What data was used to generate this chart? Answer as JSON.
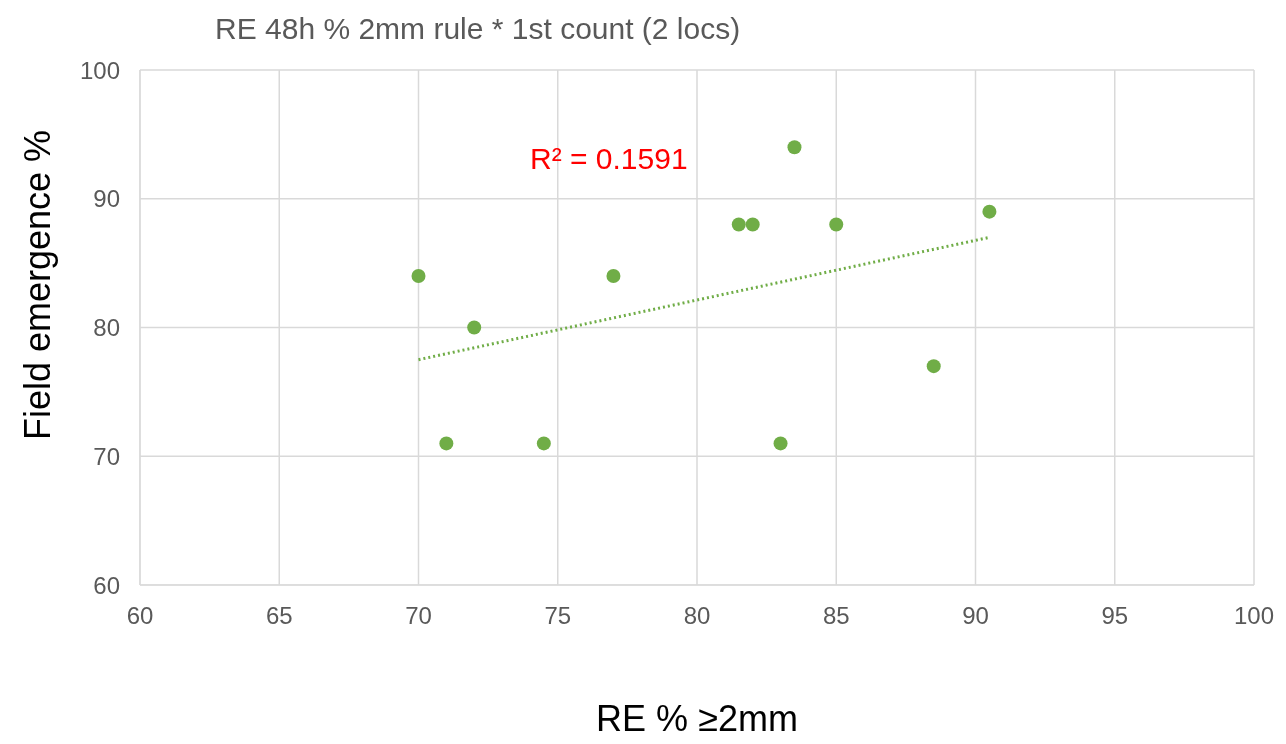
{
  "chart_data": {
    "type": "scatter",
    "title": "RE 48h % 2mm rule * 1st count (2 locs)",
    "xlabel": "RE % ≥2mm",
    "ylabel": "Field emergence %",
    "series": [
      {
        "color": "#70ad47",
        "marker": "circle",
        "x": [
          70,
          71,
          72,
          74.5,
          77,
          81.5,
          82,
          83,
          83.5,
          85,
          88.5,
          90.5
        ],
        "values": [
          84,
          71,
          80,
          71,
          84,
          88,
          88,
          71,
          94,
          88,
          77,
          89
        ]
      },
      {
        "type": "line",
        "color": "#70ad47",
        "line_style": "dotted",
        "x": [
          70,
          90.5
        ],
        "values": [
          77.5,
          87
        ]
      }
    ],
    "annotations": [
      "R² = 0.1591"
    ],
    "xlim": [
      60,
      100
    ],
    "xticks": [
      60,
      65,
      70,
      75,
      80,
      85,
      90,
      95,
      100
    ],
    "ylim": [
      60,
      100
    ],
    "yticks": [
      60,
      70,
      80,
      90,
      100
    ],
    "grid": true
  }
}
